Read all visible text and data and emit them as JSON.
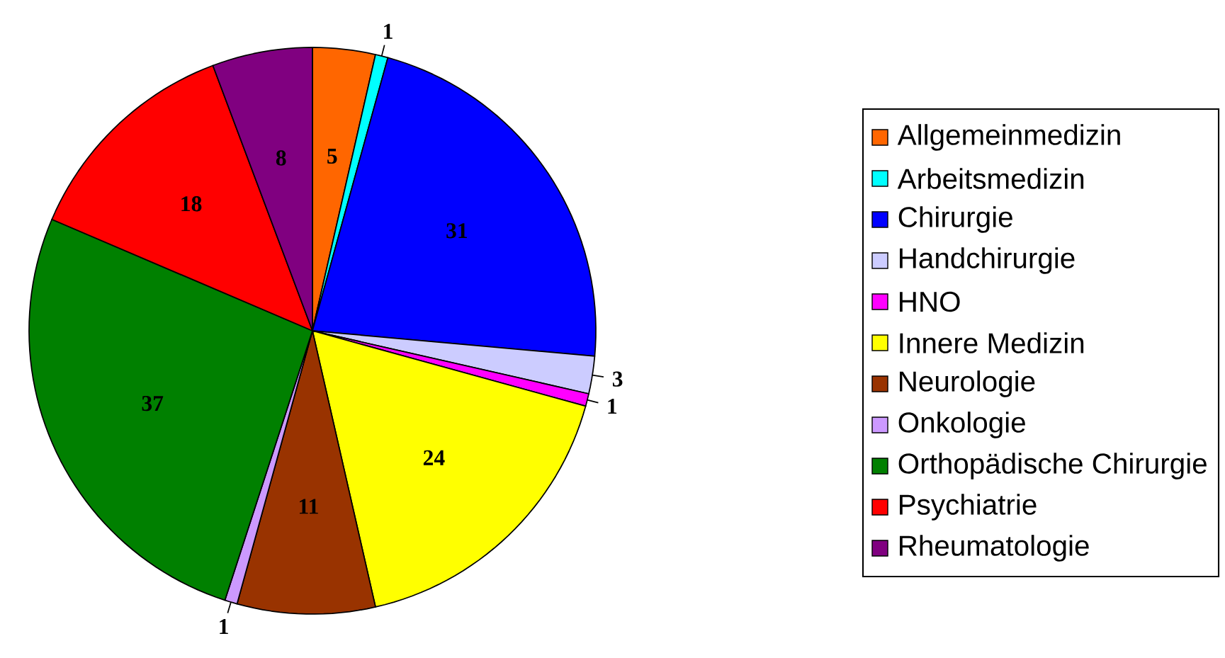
{
  "chart_data": {
    "type": "pie",
    "categories": [
      "Allgemeinmedizin",
      "Arbeitsmedizin",
      "Chirurgie",
      "Handchirurgie",
      "HNO",
      "Innere Medizin",
      "Neurologie",
      "Onkologie",
      "Orthopädische Chirurgie",
      "Psychiatrie",
      "Rheumatologie"
    ],
    "values": [
      5,
      1,
      31,
      3,
      1,
      24,
      11,
      1,
      37,
      18,
      8
    ],
    "colors": [
      "#ff6600",
      "#00ffff",
      "#0000ff",
      "#ccccff",
      "#ff00ff",
      "#ffff00",
      "#993300",
      "#cc99ff",
      "#008000",
      "#ff0000",
      "#800080"
    ],
    "data_labels": true,
    "legend": "right"
  }
}
